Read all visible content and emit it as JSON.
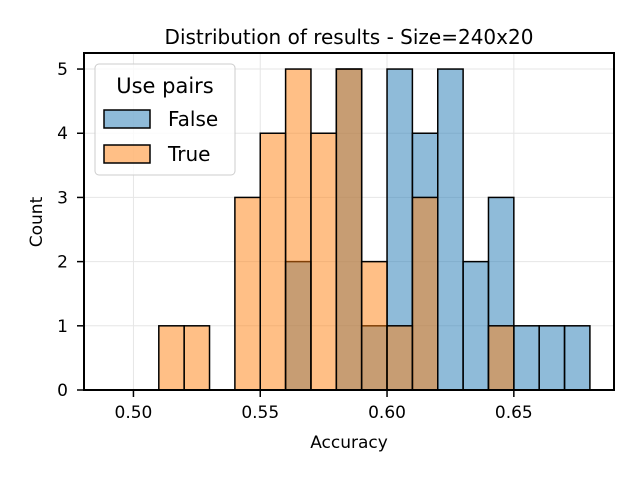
{
  "chart_data": {
    "type": "bar",
    "title": "Distribution of results - Size=240x20",
    "xlabel": "Accuracy",
    "ylabel": "Count",
    "xlim": [
      0.4805,
      0.6895
    ],
    "ylim": [
      0,
      5.25
    ],
    "x_ticks": [
      0.5,
      0.55,
      0.6,
      0.65
    ],
    "x_tick_labels": [
      "0.50",
      "0.55",
      "0.60",
      "0.65"
    ],
    "y_ticks": [
      0,
      1,
      2,
      3,
      4,
      5
    ],
    "y_tick_labels": [
      "0",
      "1",
      "2",
      "3",
      "4",
      "5"
    ],
    "grid": true,
    "legend": {
      "title": "Use pairs",
      "placement": "top-left"
    },
    "bin_edges": [
      0.49,
      0.5,
      0.51,
      0.52,
      0.53,
      0.54,
      0.55,
      0.56,
      0.57,
      0.58,
      0.59,
      0.6,
      0.61,
      0.62,
      0.63,
      0.64,
      0.65,
      0.66,
      0.67,
      0.68
    ],
    "series": [
      {
        "name": "False",
        "color": "#1f77b4",
        "alpha": 0.5,
        "values": [
          0,
          0,
          0,
          0,
          0,
          0,
          0,
          2,
          0,
          5,
          1,
          5,
          4,
          5,
          2,
          3,
          1,
          1,
          1
        ]
      },
      {
        "name": "True",
        "color": "#ff7f0e",
        "alpha": 0.5,
        "values": [
          0,
          0,
          1,
          1,
          0,
          3,
          4,
          5,
          4,
          5,
          2,
          1,
          3,
          0,
          0,
          1,
          0,
          0,
          0
        ]
      }
    ]
  }
}
